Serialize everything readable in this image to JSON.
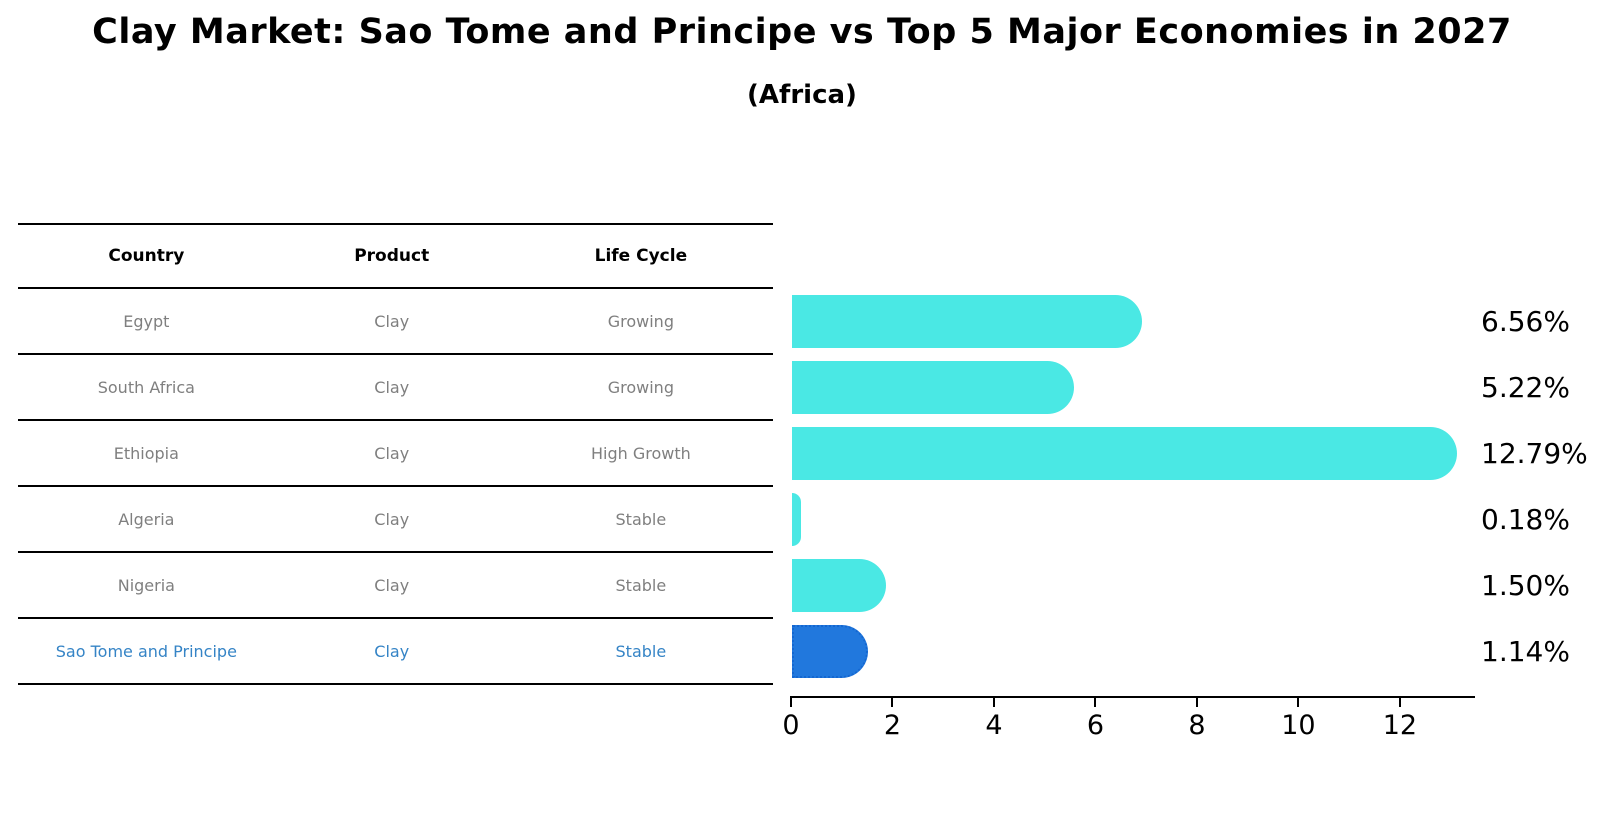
{
  "title": "Clay Market: Sao Tome and Principe vs Top 5 Major Economies in 2027",
  "subtitle": "(Africa)",
  "table": {
    "headers": [
      "Country",
      "Product",
      "Life Cycle"
    ],
    "rows": [
      {
        "country": "Egypt",
        "product": "Clay",
        "life_cycle": "Growing",
        "highlight": false
      },
      {
        "country": "South Africa",
        "product": "Clay",
        "life_cycle": "Growing",
        "highlight": false
      },
      {
        "country": "Ethiopia",
        "product": "Clay",
        "life_cycle": "High Growth",
        "highlight": false
      },
      {
        "country": "Algeria",
        "product": "Clay",
        "life_cycle": "Stable",
        "highlight": false
      },
      {
        "country": "Nigeria",
        "product": "Clay",
        "life_cycle": "Stable",
        "highlight": false
      },
      {
        "country": "Sao Tome and Principe",
        "product": "Clay",
        "life_cycle": "Stable",
        "highlight": true
      }
    ]
  },
  "chart_data": {
    "type": "bar",
    "orientation": "horizontal",
    "title": "Clay Market: Sao Tome and Principe vs Top 5 Major Economies in 2027",
    "subtitle": "(Africa)",
    "categories": [
      "Egypt",
      "South Africa",
      "Ethiopia",
      "Algeria",
      "Nigeria",
      "Sao Tome and Principe"
    ],
    "values": [
      6.56,
      5.22,
      12.79,
      0.18,
      1.5,
      1.14
    ],
    "value_labels": [
      "6.56%",
      "5.22%",
      "12.79%",
      "0.18%",
      "1.50%",
      "1.14%"
    ],
    "x_ticks": [
      0,
      2,
      4,
      6,
      8,
      10,
      12
    ],
    "xlim": [
      0,
      13.5
    ],
    "grid": false,
    "legend": "none",
    "highlight_index": 5,
    "colors": {
      "bar": "#4ae8e4",
      "highlight_bar": "#2178dd",
      "highlight_bar_border": "#1467d1",
      "highlight_text": "#3584c6",
      "axis": "#000000",
      "row_text": "#7f7f7f"
    }
  }
}
